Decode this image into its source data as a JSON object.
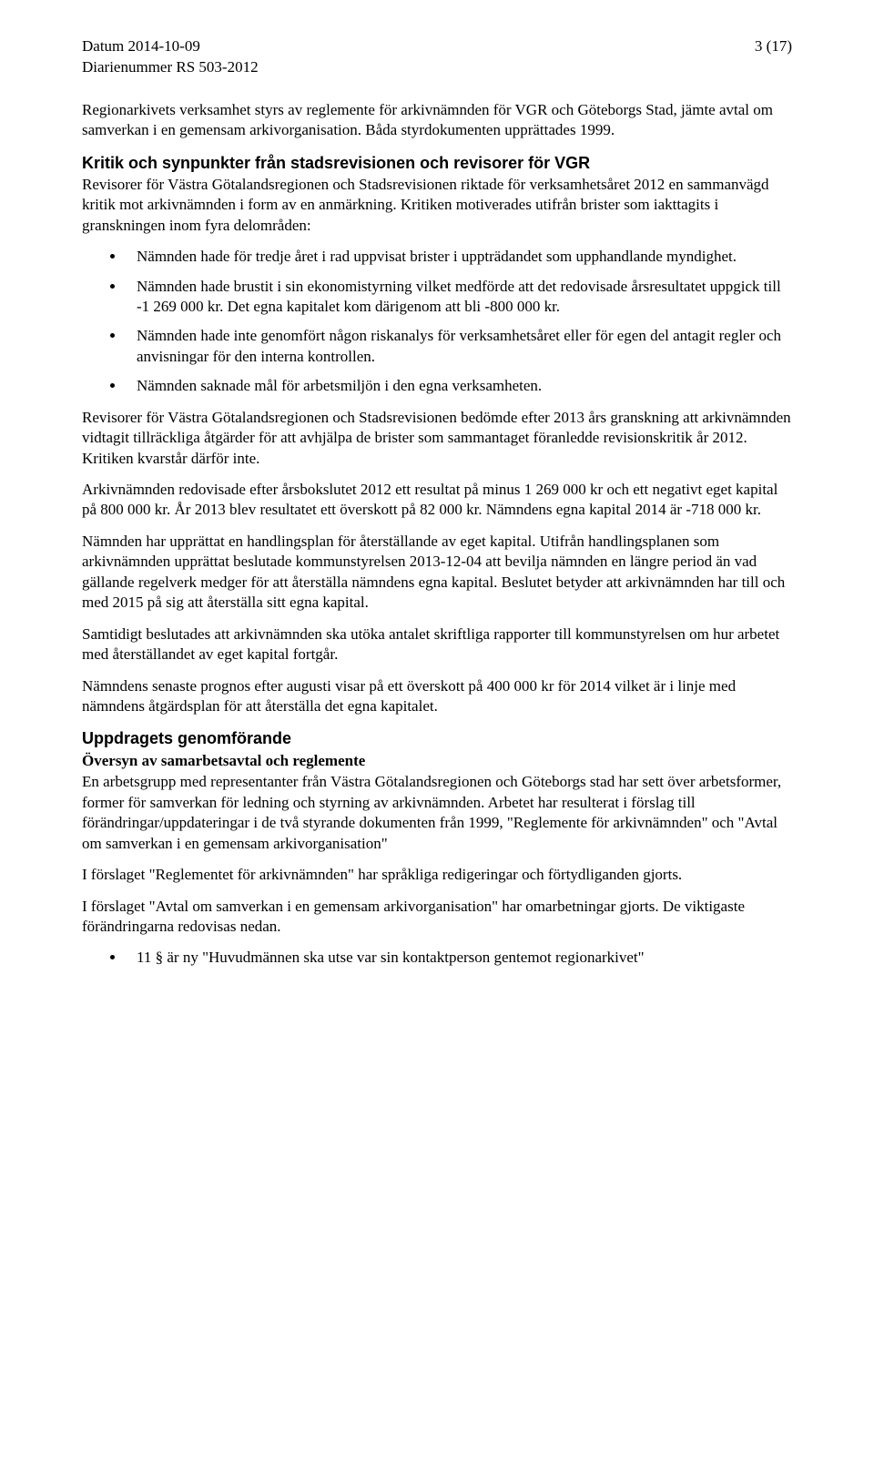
{
  "header": {
    "date_label": "Datum 2014-10-09",
    "ref_label": "Diarienummer RS 503-2012",
    "page_label": "3 (17)"
  },
  "intro": {
    "p1": "Regionarkivets verksamhet styrs av reglemente för arkivnämnden för VGR och Göteborgs Stad, jämte avtal om samverkan i en gemensam arkivorganisation. Båda styrdokumenten upprättades 1999."
  },
  "kritik": {
    "heading": "Kritik och synpunkter från stadsrevisionen och revisorer för VGR",
    "p1": "Revisorer för Västra Götalandsregionen och Stadsrevisionen riktade för verksamhetsåret 2012 en sammanvägd kritik mot arkivnämnden i form av en anmärkning. Kritiken motiverades utifrån brister som iakttagits i granskningen inom fyra delområden:",
    "bullets": [
      "Nämnden hade för tredje året i rad uppvisat brister i uppträdandet som upphandlande myndighet.",
      "Nämnden hade brustit i sin ekonomistyrning vilket medförde att det redovisade årsresultatet uppgick till -1 269 000 kr. Det egna kapitalet kom därigenom att bli -800 000 kr.",
      "Nämnden hade inte genomfört någon riskanalys för verksamhetsåret eller för egen del antagit regler och anvisningar för den interna kontrollen.",
      "Nämnden saknade mål för arbetsmiljön i den egna verksamheten."
    ],
    "p2": "Revisorer för Västra Götalandsregionen och Stadsrevisionen bedömde efter 2013 års granskning att arkivnämnden vidtagit tillräckliga åtgärder för att avhjälpa de brister som sammantaget föranledde revisionskritik år 2012. Kritiken kvarstår därför inte.",
    "p3": "Arkivnämnden redovisade efter årsbokslutet 2012 ett resultat på minus 1 269 000 kr och ett negativt eget kapital på 800 000 kr. År 2013 blev resultatet ett överskott på 82 000 kr. Nämndens egna kapital 2014 är -718 000 kr.",
    "p4": "Nämnden har upprättat en handlingsplan för återställande av eget kapital. Utifrån handlingsplanen som arkivnämnden upprättat beslutade kommunstyrelsen 2013-12-04 att bevilja nämnden en längre period än vad gällande regelverk medger för att återställa nämndens egna kapital. Beslutet betyder att arkivnämnden har till och med 2015 på sig att återställa sitt egna kapital.",
    "p5": "Samtidigt beslutades att arkivnämnden ska utöka antalet skriftliga rapporter till kommunstyrelsen om hur arbetet med återställandet av eget kapital fortgår.",
    "p6": "Nämndens senaste prognos efter augusti visar på ett överskott på 400 000 kr för 2014 vilket är i linje med nämndens åtgärdsplan för att återställa det egna kapitalet."
  },
  "uppdrag": {
    "heading": "Uppdragets genomförande",
    "subheading": "Översyn av samarbetsavtal och reglemente",
    "p1": "En arbetsgrupp med representanter från Västra Götalandsregionen och Göteborgs stad har sett över arbetsformer, former för samverkan för ledning och styrning av arkivnämnden. Arbetet har resulterat i förslag till förändringar/uppdateringar i de två styrande dokumenten från 1999, \"Reglemente för arkivnämnden\" och \"Avtal om samverkan i en gemensam arkivorganisation\"",
    "p2": "I förslaget \"Reglementet för arkivnämnden\" har språkliga redigeringar och förtydliganden gjorts.",
    "p3": "I förslaget \"Avtal om samverkan i en gemensam arkivorganisation\" har omarbetningar gjorts. De viktigaste förändringarna redovisas nedan.",
    "bullets": [
      "11 § är ny \"Huvudmännen ska utse var sin kontaktperson gentemot regionarkivet\""
    ]
  }
}
